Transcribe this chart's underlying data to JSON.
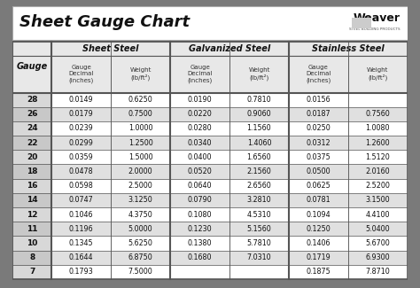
{
  "title": "Sheet Gauge Chart",
  "bg_outer": "#7a7a7a",
  "bg_white": "#ffffff",
  "bg_light_gray": "#e8e8e8",
  "bg_med_gray": "#d0d0d0",
  "col_groups": [
    "Sheet Steel",
    "Galvanized Steel",
    "Stainless Steel"
  ],
  "gauges": [
    "28",
    "26",
    "24",
    "22",
    "20",
    "18",
    "16",
    "14",
    "12",
    "11",
    "10",
    "8",
    "7"
  ],
  "sheet_steel": [
    [
      "0.0149",
      "0.6250"
    ],
    [
      "0.0179",
      "0.7500"
    ],
    [
      "0.0239",
      "1.0000"
    ],
    [
      "0.0299",
      "1.2500"
    ],
    [
      "0.0359",
      "1.5000"
    ],
    [
      "0.0478",
      "2.0000"
    ],
    [
      "0.0598",
      "2.5000"
    ],
    [
      "0.0747",
      "3.1250"
    ],
    [
      "0.1046",
      "4.3750"
    ],
    [
      "0.1196",
      "5.0000"
    ],
    [
      "0.1345",
      "5.6250"
    ],
    [
      "0.1644",
      "6.8750"
    ],
    [
      "0.1793",
      "7.5000"
    ]
  ],
  "galvanized_steel": [
    [
      "0.0190",
      "0.7810"
    ],
    [
      "0.0220",
      "0.9060"
    ],
    [
      "0.0280",
      "1.1560"
    ],
    [
      "0.0340",
      "1.4060"
    ],
    [
      "0.0400",
      "1.6560"
    ],
    [
      "0.0520",
      "2.1560"
    ],
    [
      "0.0640",
      "2.6560"
    ],
    [
      "0.0790",
      "3.2810"
    ],
    [
      "0.1080",
      "4.5310"
    ],
    [
      "0.1230",
      "5.1560"
    ],
    [
      "0.1380",
      "5.7810"
    ],
    [
      "0.1680",
      "7.0310"
    ],
    [
      "",
      ""
    ]
  ],
  "stainless_steel": [
    [
      "0.0156",
      ""
    ],
    [
      "0.0187",
      "0.7560"
    ],
    [
      "0.0250",
      "1.0080"
    ],
    [
      "0.0312",
      "1.2600"
    ],
    [
      "0.0375",
      "1.5120"
    ],
    [
      "0.0500",
      "2.0160"
    ],
    [
      "0.0625",
      "2.5200"
    ],
    [
      "0.0781",
      "3.1500"
    ],
    [
      "0.1094",
      "4.4100"
    ],
    [
      "0.1250",
      "5.0400"
    ],
    [
      "0.1406",
      "5.6700"
    ],
    [
      "0.1719",
      "6.9300"
    ],
    [
      "0.1875",
      "7.8710"
    ]
  ],
  "row_colors": [
    "#ffffff",
    "#e0e0e0",
    "#ffffff",
    "#e0e0e0",
    "#ffffff",
    "#e0e0e0",
    "#ffffff",
    "#e0e0e0",
    "#ffffff",
    "#e0e0e0",
    "#ffffff",
    "#e0e0e0",
    "#ffffff"
  ]
}
